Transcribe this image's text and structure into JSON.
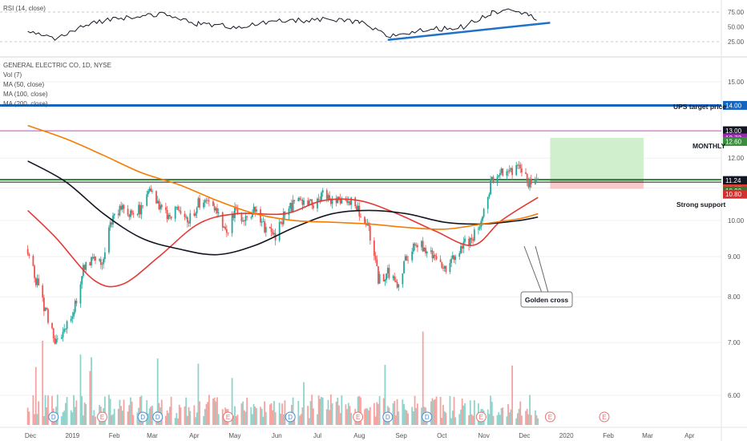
{
  "rsi_panel": {
    "title": "RSI (14, close)",
    "ticks": [
      "75.00",
      "50.00",
      "25.00"
    ],
    "tick_values": [
      75,
      50,
      25
    ]
  },
  "legend": {
    "symbol": "GENERAL ELECTRIC CO, 1D, NYSE",
    "vol": "Vol (7)",
    "ma50": "MA (50, close)",
    "ma100": "MA (100, close)",
    "ma200": "MA (200, close)"
  },
  "annotations": {
    "ups_target": "UPS target price",
    "monthly": "MONTHLY",
    "support": "Strong support",
    "golden_cross": "Golden cross"
  },
  "price_tags": [
    {
      "text": "14.00",
      "value": 14.0,
      "color": "#1565c0"
    },
    {
      "text": "13.00",
      "value": 13.0,
      "color": "#131722"
    },
    {
      "text": "12.73",
      "value": 12.73,
      "color": "#9c27b0"
    },
    {
      "text": "12.60",
      "value": 12.6,
      "color": "#388e3c"
    },
    {
      "text": "11.24",
      "value": 11.24,
      "color": "#131722"
    },
    {
      "text": "10.97",
      "value": 10.97,
      "color": "#e53935"
    },
    {
      "text": "10.90",
      "value": 10.9,
      "color": "#2e7d32"
    },
    {
      "text": "10.80",
      "value": 10.8,
      "color": "#d32f2f"
    }
  ],
  "earnings_markers": [
    "D",
    "E",
    "D",
    "D",
    "E",
    "D",
    "E",
    "D",
    "D",
    "E",
    "E",
    "E"
  ],
  "colors": {
    "up": "#26a69a",
    "down": "#ef5350",
    "ma50": "#e53935",
    "ma100": "#131722",
    "ma200": "#f57c00",
    "rsi": "#131722",
    "trend": "#1e73c8",
    "ups_line": "#1565c0",
    "monthly_line": "#c04ac0",
    "support_line": "#2e7d32"
  },
  "chart_data": {
    "type": "candlestick",
    "title": "GENERAL ELECTRIC CO, 1D, NYSE",
    "x_ticks": [
      "Dec",
      "2019",
      "Feb",
      "Mar",
      "Apr",
      "May",
      "Jun",
      "Jul",
      "Aug",
      "Sep",
      "Oct",
      "Nov",
      "Dec",
      "2020",
      "Feb",
      "Mar",
      "Apr"
    ],
    "y_ticks": [
      "15.00",
      "12.00",
      "11.00",
      "10.00",
      "9.00",
      "8.00",
      "7.00",
      "6.00"
    ],
    "y_tick_values": [
      15,
      12,
      11,
      10,
      9,
      8,
      7,
      6
    ],
    "y_scale": "log",
    "ylim": [
      5.2,
      15.8
    ],
    "price_path": [
      [
        "2018-11-29",
        9.2
      ],
      [
        "2018-12-05",
        8.4
      ],
      [
        "2018-12-12",
        7.7
      ],
      [
        "2018-12-20",
        7.0
      ],
      [
        "2018-12-27",
        7.4
      ],
      [
        "2019-01-03",
        7.8
      ],
      [
        "2019-01-10",
        8.8
      ],
      [
        "2019-01-17",
        8.95
      ],
      [
        "2019-01-24",
        8.9
      ],
      [
        "2019-01-31",
        10.2
      ],
      [
        "2019-02-07",
        10.3
      ],
      [
        "2019-02-14",
        10.1
      ],
      [
        "2019-02-21",
        10.4
      ],
      [
        "2019-02-27",
        11.1
      ],
      [
        "2019-03-06",
        10.4
      ],
      [
        "2019-03-14",
        10.1
      ],
      [
        "2019-03-21",
        10.4
      ],
      [
        "2019-03-28",
        10.0
      ],
      [
        "2019-04-04",
        10.5
      ],
      [
        "2019-04-11",
        10.6
      ],
      [
        "2019-04-18",
        10.2
      ],
      [
        "2019-04-25",
        9.7
      ],
      [
        "2019-05-02",
        10.3
      ],
      [
        "2019-05-09",
        10.0
      ],
      [
        "2019-05-16",
        10.4
      ],
      [
        "2019-05-23",
        9.8
      ],
      [
        "2019-05-31",
        9.5
      ],
      [
        "2019-06-07",
        10.2
      ],
      [
        "2019-06-14",
        10.5
      ],
      [
        "2019-06-21",
        10.6
      ],
      [
        "2019-06-28",
        10.5
      ],
      [
        "2019-07-05",
        10.8
      ],
      [
        "2019-07-12",
        10.6
      ],
      [
        "2019-07-19",
        10.5
      ],
      [
        "2019-07-26",
        10.6
      ],
      [
        "2019-08-01",
        10.2
      ],
      [
        "2019-08-08",
        9.8
      ],
      [
        "2019-08-15",
        8.4
      ],
      [
        "2019-08-22",
        8.6
      ],
      [
        "2019-08-29",
        8.3
      ],
      [
        "2019-09-05",
        9.0
      ],
      [
        "2019-09-12",
        9.4
      ],
      [
        "2019-09-19",
        9.2
      ],
      [
        "2019-09-26",
        8.9
      ],
      [
        "2019-10-03",
        8.7
      ],
      [
        "2019-10-10",
        9.0
      ],
      [
        "2019-10-17",
        9.3
      ],
      [
        "2019-10-24",
        9.5
      ],
      [
        "2019-10-31",
        10.0
      ],
      [
        "2019-11-07",
        11.3
      ],
      [
        "2019-11-14",
        11.6
      ],
      [
        "2019-11-21",
        11.5
      ],
      [
        "2019-11-27",
        11.6
      ],
      [
        "2019-12-04",
        11.2
      ],
      [
        "2019-12-11",
        11.1
      ]
    ],
    "series": [
      {
        "name": "MA (50, close)",
        "points": [
          [
            "2018-11-29",
            10.3
          ],
          [
            "2018-12-20",
            9.5
          ],
          [
            "2019-01-17",
            8.4
          ],
          [
            "2019-02-07",
            8.3
          ],
          [
            "2019-03-06",
            9.0
          ],
          [
            "2019-04-04",
            9.9
          ],
          [
            "2019-05-02",
            10.2
          ],
          [
            "2019-06-07",
            10.2
          ],
          [
            "2019-07-05",
            10.6
          ],
          [
            "2019-08-01",
            10.6
          ],
          [
            "2019-08-29",
            10.2
          ],
          [
            "2019-09-26",
            9.7
          ],
          [
            "2019-10-24",
            9.3
          ],
          [
            "2019-11-14",
            10.0
          ],
          [
            "2019-12-11",
            10.7
          ]
        ]
      },
      {
        "name": "MA (100, close)",
        "points": [
          [
            "2018-11-29",
            11.9
          ],
          [
            "2018-12-27",
            11.2
          ],
          [
            "2019-01-24",
            10.2
          ],
          [
            "2019-02-21",
            9.5
          ],
          [
            "2019-03-21",
            9.2
          ],
          [
            "2019-04-18",
            9.05
          ],
          [
            "2019-05-16",
            9.3
          ],
          [
            "2019-06-14",
            9.8
          ],
          [
            "2019-07-12",
            10.2
          ],
          [
            "2019-08-08",
            10.3
          ],
          [
            "2019-09-05",
            10.2
          ],
          [
            "2019-10-03",
            9.95
          ],
          [
            "2019-10-31",
            9.9
          ],
          [
            "2019-11-27",
            10.0
          ],
          [
            "2019-12-11",
            10.1
          ]
        ]
      },
      {
        "name": "MA (200, close)",
        "points": [
          [
            "2018-11-29",
            13.2
          ],
          [
            "2018-12-27",
            12.7
          ],
          [
            "2019-01-24",
            12.1
          ],
          [
            "2019-02-21",
            11.5
          ],
          [
            "2019-03-21",
            11.1
          ],
          [
            "2019-04-18",
            10.6
          ],
          [
            "2019-05-16",
            10.2
          ],
          [
            "2019-06-14",
            10.0
          ],
          [
            "2019-07-12",
            9.95
          ],
          [
            "2019-08-08",
            9.9
          ],
          [
            "2019-09-05",
            9.8
          ],
          [
            "2019-10-03",
            9.75
          ],
          [
            "2019-10-31",
            9.9
          ],
          [
            "2019-11-27",
            10.05
          ],
          [
            "2019-12-11",
            10.2
          ]
        ]
      }
    ],
    "horizontal_levels": [
      {
        "name": "UPS target price",
        "value": 14.0
      },
      {
        "name": "MONTHLY",
        "value": 13.0
      },
      {
        "name": "Strong support",
        "value": 11.24
      }
    ],
    "position_box": {
      "entry": 11.24,
      "target": 12.73,
      "stop": 10.97,
      "start": "2019-12-20",
      "end": "2020-02-27"
    },
    "rsi": {
      "name": "RSI (14, close)",
      "ylim": [
        15,
        90
      ],
      "points": [
        [
          "2018-11-29",
          42
        ],
        [
          "2018-12-20",
          30
        ],
        [
          "2019-01-17",
          58
        ],
        [
          "2019-02-14",
          68
        ],
        [
          "2019-03-06",
          72
        ],
        [
          "2019-04-04",
          55
        ],
        [
          "2019-05-02",
          50
        ],
        [
          "2019-06-07",
          60
        ],
        [
          "2019-07-05",
          62
        ],
        [
          "2019-08-01",
          58
        ],
        [
          "2019-08-22",
          34
        ],
        [
          "2019-09-19",
          45
        ],
        [
          "2019-10-17",
          50
        ],
        [
          "2019-11-07",
          74
        ],
        [
          "2019-11-21",
          82
        ],
        [
          "2019-12-04",
          72
        ],
        [
          "2019-12-11",
          55
        ]
      ],
      "trendline": [
        [
          "2019-08-22",
          28
        ],
        [
          "2019-12-20",
          57
        ]
      ]
    }
  }
}
